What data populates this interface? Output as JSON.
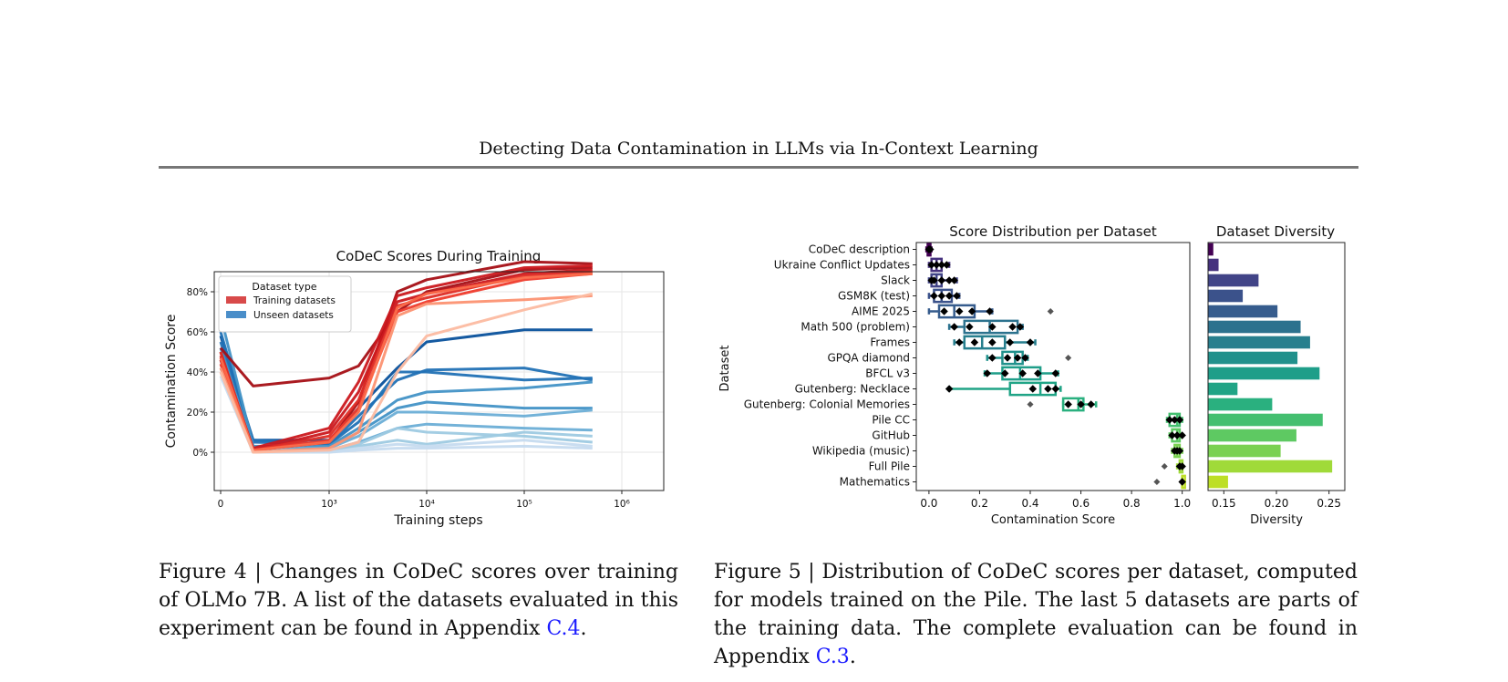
{
  "header": {
    "title": "Detecting Data Contamination in LLMs via In-Context Learning"
  },
  "figure4": {
    "caption_label": "Figure 4",
    "caption_sep": " | ",
    "caption_text": "Changes in CoDeC scores over training of OLMo 7B. A list of the datasets evaluated in this experiment can be found in Appendix ",
    "caption_ref": "C.4",
    "caption_end": "."
  },
  "figure5": {
    "caption_label": "Figure 5",
    "caption_sep": " | ",
    "caption_text": "Distribution of CoDeC scores per dataset, computed for models trained on the Pile. The last 5 datasets are parts of the training data. The complete evaluation can be found in Appendix ",
    "caption_ref": "C.3",
    "caption_end": "."
  },
  "chart_data": [
    {
      "type": "line",
      "title": "CoDeC Scores During Training",
      "xlabel": "Training steps",
      "ylabel": "Contamination Score",
      "x_scale": "symlog",
      "x_ticks": [
        "0",
        "10³",
        "10⁴",
        "10⁵",
        "10⁶"
      ],
      "y_ticks": [
        "0%",
        "20%",
        "40%",
        "60%",
        "80%"
      ],
      "ylim": [
        0,
        100
      ],
      "grid": true,
      "legend": {
        "title": "Dataset type",
        "entries": [
          "Training datasets",
          "Unseen datasets"
        ],
        "placement": "top-left"
      },
      "x": [
        0,
        300,
        1000,
        2000,
        5000,
        10000,
        100000,
        500000
      ],
      "series": [
        {
          "group": "Training datasets",
          "color": "#a50f15",
          "values": [
            52,
            33,
            37,
            43,
            70,
            80,
            91,
            92
          ]
        },
        {
          "group": "Training datasets",
          "color": "#a50f15",
          "values": [
            50,
            1,
            5,
            25,
            80,
            86,
            95,
            94
          ]
        },
        {
          "group": "Training datasets",
          "color": "#cb181d",
          "values": [
            48,
            2,
            12,
            35,
            78,
            82,
            92,
            93
          ]
        },
        {
          "group": "Training datasets",
          "color": "#cb181d",
          "values": [
            46,
            1,
            10,
            30,
            75,
            79,
            89,
            91
          ]
        },
        {
          "group": "Training datasets",
          "color": "#de2d26",
          "values": [
            50,
            1,
            8,
            26,
            73,
            77,
            88,
            90
          ]
        },
        {
          "group": "Training datasets",
          "color": "#ef3b2c",
          "values": [
            44,
            1,
            6,
            22,
            70,
            75,
            86,
            89
          ]
        },
        {
          "group": "Training datasets",
          "color": "#fb6a4a",
          "values": [
            47,
            1,
            5,
            20,
            72,
            79,
            87,
            89
          ]
        },
        {
          "group": "Training datasets",
          "color": "#fc9272",
          "values": [
            42,
            0,
            2,
            10,
            68,
            74,
            76,
            78
          ]
        },
        {
          "group": "Training datasets",
          "color": "#fcbba1",
          "values": [
            40,
            0,
            1,
            5,
            40,
            58,
            71,
            79
          ]
        },
        {
          "group": "Unseen datasets",
          "color": "#08519c",
          "values": [
            58,
            6,
            6,
            22,
            42,
            55,
            61,
            61
          ]
        },
        {
          "group": "Unseen datasets",
          "color": "#2171b5",
          "values": [
            60,
            5,
            4,
            18,
            36,
            41,
            42,
            36
          ]
        },
        {
          "group": "Unseen datasets",
          "color": "#2171b5",
          "values": [
            55,
            6,
            4,
            15,
            40,
            40,
            36,
            37
          ]
        },
        {
          "group": "Unseen datasets",
          "color": "#4292c6",
          "values": [
            68,
            3,
            3,
            12,
            26,
            30,
            32,
            35
          ]
        },
        {
          "group": "Unseen datasets",
          "color": "#4292c6",
          "values": [
            52,
            2,
            2,
            10,
            22,
            25,
            22,
            22
          ]
        },
        {
          "group": "Unseen datasets",
          "color": "#6baed6",
          "values": [
            50,
            2,
            2,
            8,
            20,
            20,
            18,
            21
          ]
        },
        {
          "group": "Unseen datasets",
          "color": "#6baed6",
          "values": [
            46,
            1,
            1,
            5,
            12,
            14,
            12,
            11
          ]
        },
        {
          "group": "Unseen datasets",
          "color": "#9ecae1",
          "values": [
            44,
            1,
            1,
            4,
            12,
            10,
            8,
            5
          ]
        },
        {
          "group": "Unseen datasets",
          "color": "#9ecae1",
          "values": [
            42,
            1,
            1,
            3,
            6,
            4,
            10,
            8
          ]
        },
        {
          "group": "Unseen datasets",
          "color": "#c6dbef",
          "values": [
            40,
            0,
            0,
            2,
            4,
            3,
            6,
            3
          ]
        },
        {
          "group": "Unseen datasets",
          "color": "#c6dbef",
          "values": [
            38,
            0,
            0,
            1,
            2,
            2,
            3,
            2
          ]
        }
      ]
    },
    {
      "type": "box",
      "title": "Score Distribution per Dataset",
      "xlabel": "Contamination Score",
      "ylabel": "Dataset",
      "xlim": [
        -0.05,
        1.03
      ],
      "x_ticks": [
        "0.0",
        "0.2",
        "0.4",
        "0.6",
        "0.8",
        "1.0"
      ],
      "categories": [
        "CoDeC description",
        "Ukraine Conflict Updates",
        "Slack",
        "GSM8K (test)",
        "AIME 2025",
        "Math 500 (problem)",
        "Frames",
        "GPQA diamond",
        "BFCL v3",
        "Gutenberg: Necklace",
        "Gutenberg: Colonial Memories",
        "Pile CC",
        "GitHub",
        "Wikipedia (music)",
        "Full Pile",
        "Mathematics"
      ],
      "colors": [
        "#440154",
        "#46327e",
        "#414487",
        "#3b528b",
        "#365c8d",
        "#2c728e",
        "#277f8e",
        "#21918c",
        "#1f9e89",
        "#20a486",
        "#2ab07f",
        "#44bf70",
        "#5ec962",
        "#7ad151",
        "#a0da39",
        "#bddf26"
      ],
      "boxes": [
        {
          "min": -0.01,
          "q1": -0.005,
          "median": 0.0,
          "q3": 0.005,
          "max": 0.01,
          "points": [
            0.0,
            0.0,
            0.005
          ],
          "outliers": []
        },
        {
          "min": 0.0,
          "q1": 0.01,
          "median": 0.03,
          "q3": 0.05,
          "max": 0.08,
          "points": [
            0.01,
            0.03,
            0.05,
            0.07
          ],
          "outliers": []
        },
        {
          "min": 0.0,
          "q1": 0.01,
          "median": 0.03,
          "q3": 0.05,
          "max": 0.11,
          "points": [
            0.01,
            0.02,
            0.05,
            0.08,
            0.1
          ],
          "outliers": []
        },
        {
          "min": 0.0,
          "q1": 0.02,
          "median": 0.05,
          "q3": 0.09,
          "max": 0.12,
          "points": [
            0.02,
            0.05,
            0.08,
            0.11
          ],
          "outliers": []
        },
        {
          "min": 0.0,
          "q1": 0.04,
          "median": 0.1,
          "q3": 0.18,
          "max": 0.25,
          "points": [
            0.06,
            0.12,
            0.17,
            0.24
          ],
          "outliers": [
            0.48
          ]
        },
        {
          "min": 0.08,
          "q1": 0.14,
          "median": 0.24,
          "q3": 0.35,
          "max": 0.37,
          "points": [
            0.1,
            0.16,
            0.25,
            0.33,
            0.36
          ],
          "outliers": []
        },
        {
          "min": 0.1,
          "q1": 0.14,
          "median": 0.21,
          "q3": 0.3,
          "max": 0.42,
          "points": [
            0.12,
            0.18,
            0.25,
            0.32,
            0.4
          ],
          "outliers": []
        },
        {
          "min": 0.23,
          "q1": 0.29,
          "median": 0.34,
          "q3": 0.37,
          "max": 0.39,
          "points": [
            0.25,
            0.31,
            0.35,
            0.38
          ],
          "outliers": [
            0.55
          ]
        },
        {
          "min": 0.22,
          "q1": 0.29,
          "median": 0.36,
          "q3": 0.44,
          "max": 0.51,
          "points": [
            0.23,
            0.3,
            0.37,
            0.43,
            0.5
          ],
          "outliers": []
        },
        {
          "min": 0.08,
          "q1": 0.32,
          "median": 0.44,
          "q3": 0.5,
          "max": 0.52,
          "points": [
            0.08,
            0.41,
            0.47,
            0.5
          ],
          "outliers": []
        },
        {
          "min": 0.53,
          "q1": 0.53,
          "median": 0.59,
          "q3": 0.61,
          "max": 0.66,
          "points": [
            0.55,
            0.6,
            0.64
          ],
          "outliers": [
            0.4
          ]
        },
        {
          "min": 0.94,
          "q1": 0.95,
          "median": 0.98,
          "q3": 0.99,
          "max": 1.0,
          "points": [
            0.95,
            0.97,
            0.99
          ],
          "outliers": []
        },
        {
          "min": 0.95,
          "q1": 0.96,
          "median": 0.98,
          "q3": 0.99,
          "max": 1.0,
          "points": [
            0.96,
            0.98,
            1.0
          ],
          "outliers": []
        },
        {
          "min": 0.96,
          "q1": 0.97,
          "median": 0.98,
          "q3": 0.99,
          "max": 1.0,
          "points": [
            0.97,
            0.98,
            0.99
          ],
          "outliers": []
        },
        {
          "min": 0.98,
          "q1": 0.99,
          "median": 1.0,
          "q3": 1.0,
          "max": 1.0,
          "points": [
            1.0,
            0.99
          ],
          "outliers": [
            0.93
          ]
        },
        {
          "min": 1.0,
          "q1": 1.0,
          "median": 1.0,
          "q3": 1.0,
          "max": 1.0,
          "points": [
            1.0
          ],
          "outliers": [
            0.9
          ]
        }
      ]
    },
    {
      "type": "bar",
      "orientation": "horizontal",
      "title": "Dataset Diversity",
      "xlabel": "Diversity",
      "xlim": [
        0.135,
        0.265
      ],
      "x_ticks": [
        "0.15",
        "0.20",
        "0.25"
      ],
      "categories": [
        "CoDeC description",
        "Ukraine Conflict Updates",
        "Slack",
        "GSM8K (test)",
        "AIME 2025",
        "Math 500 (problem)",
        "Frames",
        "GPQA diamond",
        "BFCL v3",
        "Gutenberg: Necklace",
        "Gutenberg: Colonial Memories",
        "Pile CC",
        "GitHub",
        "Wikipedia (music)",
        "Full Pile",
        "Mathematics"
      ],
      "values": [
        0.14,
        0.145,
        0.183,
        0.168,
        0.201,
        0.223,
        0.232,
        0.22,
        0.241,
        0.163,
        0.196,
        0.244,
        0.219,
        0.204,
        0.253,
        0.154
      ]
    }
  ]
}
